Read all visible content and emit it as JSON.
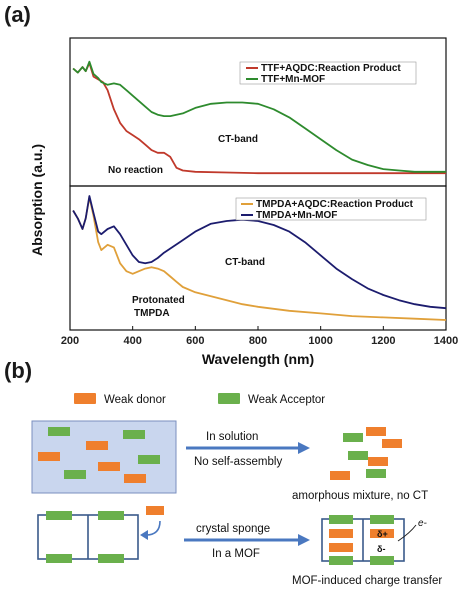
{
  "panel_a_label": "(a)",
  "panel_b_label": "(b)",
  "colors": {
    "ttf_aqdc": "#c0392b",
    "ttf_mnmof": "#2e8b2e",
    "tmpda_aqdc": "#e0a03a",
    "tmpda_mnmof": "#1c1c6e",
    "donor": "#ef7f2d",
    "acceptor": "#6ab04c",
    "solution_fill": "#c9d6ee",
    "solution_border": "#7a8fbf",
    "arrow": "#4a78c0",
    "mof_frame": "#3a5a8a"
  },
  "chart_data": [
    {
      "type": "line",
      "panel": "top",
      "xlabel": "",
      "ylabel": "Absorption (a.u.)",
      "xlim": [
        200,
        1400
      ],
      "ylim": [
        0,
        1
      ],
      "series": [
        {
          "name": "TTF+AQDC:Reaction Product",
          "color": "#c0392b",
          "x": [
            210,
            225,
            240,
            250,
            262,
            275,
            290,
            305,
            320,
            340,
            360,
            380,
            400,
            420,
            440,
            460,
            480,
            500,
            520,
            540,
            560,
            600,
            700,
            800,
            900,
            1000,
            1100,
            1200,
            1300,
            1400
          ],
          "y": [
            0.82,
            0.79,
            0.83,
            0.8,
            0.86,
            0.76,
            0.74,
            0.72,
            0.66,
            0.52,
            0.42,
            0.36,
            0.33,
            0.3,
            0.26,
            0.22,
            0.2,
            0.2,
            0.17,
            0.09,
            0.07,
            0.06,
            0.055,
            0.05,
            0.05,
            0.05,
            0.05,
            0.05,
            0.05,
            0.05
          ]
        },
        {
          "name": "TTF+Mn-MOF",
          "color": "#2e8b2e",
          "x": [
            210,
            225,
            240,
            250,
            262,
            275,
            290,
            300,
            320,
            340,
            360,
            380,
            400,
            420,
            440,
            460,
            480,
            500,
            520,
            560,
            600,
            650,
            700,
            750,
            800,
            850,
            900,
            950,
            1000,
            1050,
            1100,
            1150,
            1200,
            1250,
            1300,
            1350,
            1400
          ],
          "y": [
            0.82,
            0.79,
            0.83,
            0.8,
            0.87,
            0.78,
            0.75,
            0.72,
            0.7,
            0.71,
            0.7,
            0.66,
            0.62,
            0.58,
            0.54,
            0.5,
            0.48,
            0.47,
            0.47,
            0.49,
            0.53,
            0.56,
            0.57,
            0.57,
            0.56,
            0.52,
            0.46,
            0.38,
            0.3,
            0.22,
            0.15,
            0.11,
            0.08,
            0.07,
            0.06,
            0.06,
            0.06
          ]
        }
      ],
      "annotations": [
        "CT-band",
        "No reaction"
      ]
    },
    {
      "type": "line",
      "panel": "bottom",
      "xlabel": "Wavelength (nm)",
      "ylabel": "",
      "xlim": [
        200,
        1400
      ],
      "ylim": [
        0,
        1
      ],
      "x_ticks": [
        200,
        400,
        600,
        800,
        1000,
        1200,
        1400
      ],
      "series": [
        {
          "name": "TMPDA+AQDC:Reaction Product",
          "color": "#e0a03a",
          "x": [
            210,
            225,
            240,
            250,
            262,
            275,
            290,
            300,
            320,
            340,
            360,
            380,
            400,
            420,
            440,
            460,
            480,
            500,
            520,
            540,
            560,
            600,
            650,
            700,
            750,
            800,
            900,
            1000,
            1100,
            1200,
            1300,
            1400
          ],
          "y": [
            0.86,
            0.8,
            0.72,
            0.8,
            0.96,
            0.82,
            0.62,
            0.56,
            0.6,
            0.58,
            0.46,
            0.4,
            0.38,
            0.4,
            0.42,
            0.43,
            0.42,
            0.4,
            0.36,
            0.32,
            0.28,
            0.24,
            0.21,
            0.18,
            0.15,
            0.13,
            0.1,
            0.08,
            0.06,
            0.05,
            0.04,
            0.03
          ]
        },
        {
          "name": "TMPDA+Mn-MOF",
          "color": "#1c1c6e",
          "x": [
            210,
            225,
            240,
            250,
            262,
            275,
            290,
            300,
            320,
            340,
            360,
            380,
            400,
            420,
            440,
            460,
            480,
            500,
            550,
            600,
            650,
            700,
            750,
            800,
            850,
            900,
            950,
            1000,
            1050,
            1100,
            1150,
            1200,
            1250,
            1300,
            1350,
            1400
          ],
          "y": [
            0.86,
            0.8,
            0.72,
            0.8,
            0.97,
            0.84,
            0.7,
            0.68,
            0.72,
            0.74,
            0.68,
            0.6,
            0.52,
            0.47,
            0.46,
            0.47,
            0.5,
            0.54,
            0.62,
            0.7,
            0.76,
            0.78,
            0.79,
            0.78,
            0.75,
            0.7,
            0.62,
            0.52,
            0.42,
            0.34,
            0.27,
            0.22,
            0.18,
            0.15,
            0.13,
            0.12
          ]
        }
      ],
      "annotations": [
        "CT-band",
        "Protonated",
        "TMPDA"
      ]
    }
  ],
  "schematic": {
    "legend_donor": "Weak donor",
    "legend_acceptor": "Weak Acceptor",
    "arrow1_top": "In solution",
    "arrow1_bottom": "No self-assembly",
    "result1": "amorphous mixture, no CT",
    "arrow2_top": "crystal sponge",
    "arrow2_bottom": "In a MOF",
    "result2": "MOF-induced charge transfer",
    "delta_plus": "δ+",
    "delta_minus": "δ-",
    "electron": "e-"
  }
}
